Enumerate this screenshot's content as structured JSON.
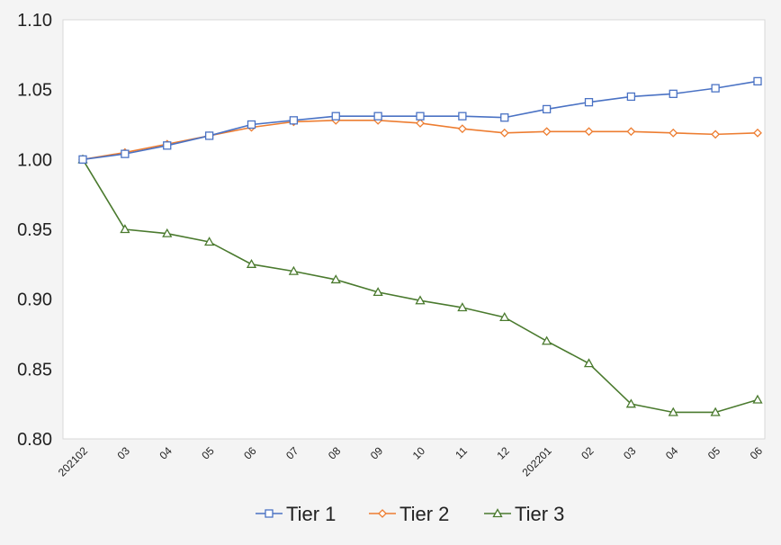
{
  "chart_data": {
    "type": "line",
    "title": "",
    "xlabel": "",
    "ylabel": "",
    "categories": [
      "202102",
      "03",
      "04",
      "05",
      "06",
      "07",
      "08",
      "09",
      "10",
      "11",
      "12",
      "202201",
      "02",
      "03",
      "04",
      "05",
      "06"
    ],
    "ylim": [
      0.8,
      1.1
    ],
    "yticks": [
      "0.80",
      "0.85",
      "0.90",
      "0.95",
      "1.00",
      "1.05",
      "1.10"
    ],
    "grid": false,
    "legend_position": "bottom",
    "series": [
      {
        "name": "Tier 1",
        "color": "#4a72c4",
        "marker": "square",
        "values": [
          1.0,
          1.004,
          1.01,
          1.017,
          1.025,
          1.028,
          1.031,
          1.031,
          1.031,
          1.031,
          1.03,
          1.036,
          1.041,
          1.045,
          1.047,
          1.051,
          1.056
        ]
      },
      {
        "name": "Tier 2",
        "color": "#ed7d31",
        "marker": "diamond",
        "values": [
          1.0,
          1.005,
          1.011,
          1.017,
          1.023,
          1.027,
          1.028,
          1.028,
          1.026,
          1.022,
          1.019,
          1.02,
          1.02,
          1.02,
          1.019,
          1.018,
          1.019
        ]
      },
      {
        "name": "Tier 3",
        "color": "#4a7a2e",
        "marker": "triangle",
        "values": [
          1.0,
          0.95,
          0.947,
          0.941,
          0.925,
          0.92,
          0.914,
          0.905,
          0.899,
          0.894,
          0.887,
          0.87,
          0.854,
          0.825,
          0.819,
          0.819,
          0.828
        ]
      }
    ]
  }
}
